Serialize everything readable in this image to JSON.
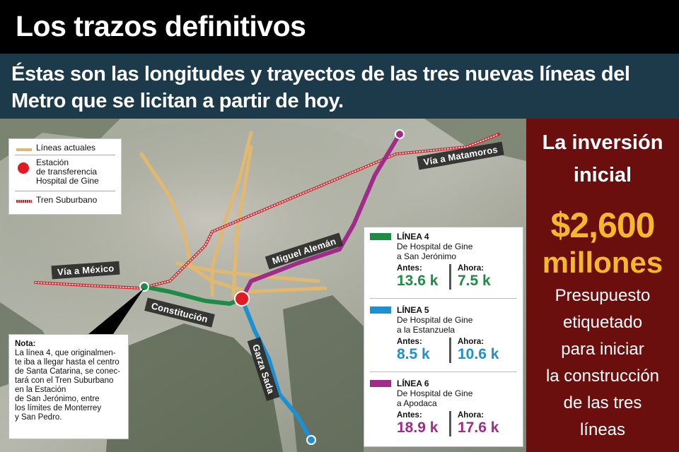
{
  "header": {
    "title": "Los trazos definitivos"
  },
  "subheader": {
    "text": "Éstas son las longitudes y trayectos de las tres nuevas líneas del Metro que se licitan a partir de hoy."
  },
  "legend": {
    "current_lines": "Líneas actuales",
    "station_line1": "Estación",
    "station_line2": "de transferencia",
    "station_line3": "Hospital de Gine",
    "suburban": "Tren Suburbano"
  },
  "map_labels": {
    "via_matamoros": "Vía a Matamoros",
    "miguel_aleman": "Miguel Alemán",
    "via_mexico": "Vía a México",
    "constitucion": "Constitución",
    "garza_sada": "Garza Sada"
  },
  "note": {
    "title": "Nota:",
    "lines": [
      "La línea 4, que originalmen-",
      "te iba a llegar hasta el centro",
      "de Santa Catarina, se conec-",
      "tará con el Tren Suburbano",
      "en la Estación",
      "de San Jerónimo, entre",
      "los límites de Monterrey",
      "y San Pedro."
    ]
  },
  "lines": [
    {
      "name": "LÍNEA 4",
      "desc1": "De Hospital de Gine",
      "desc2": "a San Jerónimo",
      "before_label": "Antes:",
      "after_label": "Ahora:",
      "before": "13.6 k",
      "after": "7.5 k",
      "color": "#1e8c46"
    },
    {
      "name": "LÍNEA 5",
      "desc1": "De Hospital de Gine",
      "desc2": "a la Estanzuela",
      "before_label": "Antes:",
      "after_label": "Ahora:",
      "before": "8.5 k",
      "after": "10.6 k",
      "color": "#1e8fcf"
    },
    {
      "name": "LÍNEA 6",
      "desc1": "De Hospital de Gine",
      "desc2": "a Apodaca",
      "before_label": "Antes:",
      "after_label": "Ahora:",
      "before": "18.9 k",
      "after": "17.6 k",
      "color": "#a12b8a"
    }
  ],
  "side": {
    "heading1": "La inversión",
    "heading2": "inicial",
    "amount": "$2,600",
    "unit": "millones",
    "desc": [
      "Presupuesto",
      "etiquetado",
      "para iniciar",
      "la construcción",
      "de las tres",
      "líneas"
    ]
  },
  "colors": {
    "current_lines": "#e0b870",
    "suburban": "#c8242a",
    "station": "#e11b22",
    "side_bg": "#6b0e0e",
    "amount": "#f4b82d"
  }
}
